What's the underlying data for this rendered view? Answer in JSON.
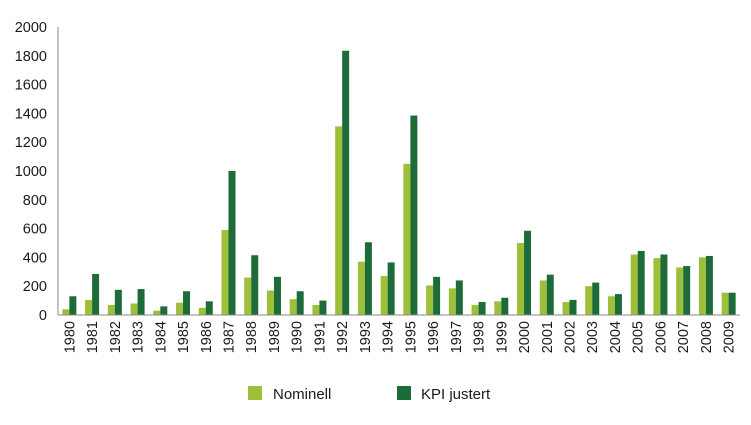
{
  "chart_data": {
    "type": "bar",
    "categories": [
      "1980",
      "1981",
      "1982",
      "1983",
      "1984",
      "1985",
      "1986",
      "1987",
      "1988",
      "1989",
      "1990",
      "1991",
      "1992",
      "1993",
      "1994",
      "1995",
      "1996",
      "1997",
      "1998",
      "1999",
      "2000",
      "2001",
      "2002",
      "2003",
      "2004",
      "2005",
      "2006",
      "2007",
      "2008",
      "2009"
    ],
    "series": [
      {
        "name": "Nominell",
        "color": "#9dbf3a",
        "values": [
          40,
          105,
          70,
          80,
          30,
          85,
          50,
          590,
          260,
          170,
          110,
          70,
          1310,
          370,
          270,
          1050,
          205,
          185,
          70,
          95,
          500,
          240,
          90,
          200,
          130,
          420,
          395,
          330,
          400,
          155
        ]
      },
      {
        "name": "KPI justert",
        "color": "#1e6b3a",
        "values": [
          130,
          285,
          175,
          180,
          60,
          165,
          95,
          1000,
          415,
          265,
          165,
          100,
          1835,
          505,
          365,
          1385,
          265,
          240,
          90,
          120,
          585,
          280,
          105,
          225,
          145,
          445,
          420,
          340,
          410,
          155
        ]
      }
    ],
    "y_ticks": [
      "0",
      "200",
      "400",
      "600",
      "800",
      "1000",
      "1200",
      "1400",
      "1600",
      "1800",
      "2000"
    ],
    "ylim": [
      0,
      2000
    ],
    "grid": false,
    "legend_position": "bottom"
  }
}
